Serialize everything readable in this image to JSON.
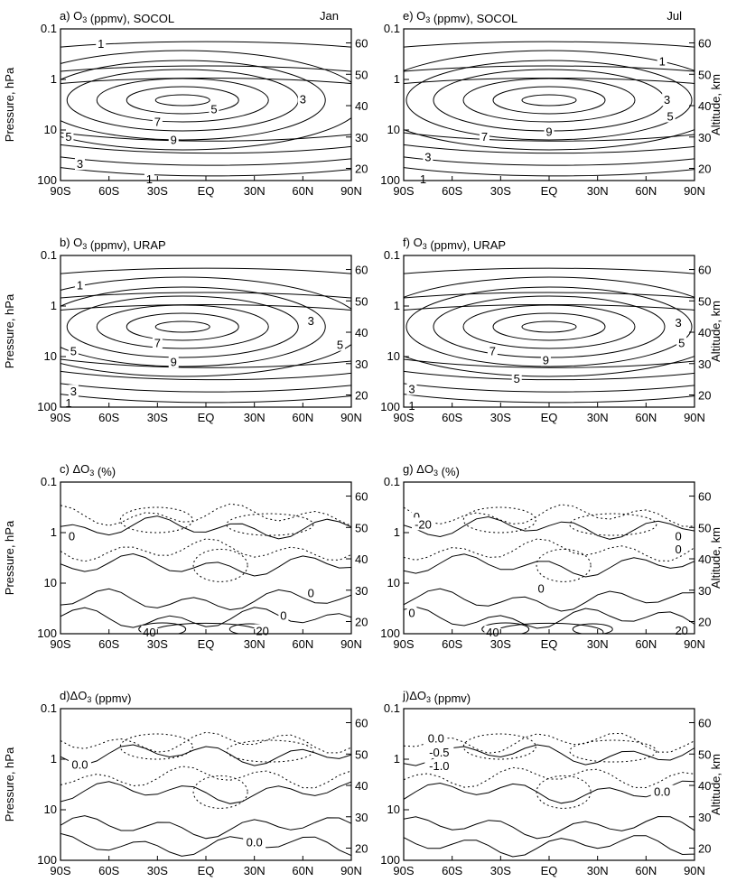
{
  "figure": {
    "y_left_label": "Pressure, hPa",
    "y_right_label": "Altitude, km",
    "x_tick_labels": [
      "90S",
      "60S",
      "30S",
      "EQ",
      "30N",
      "60N",
      "90N"
    ],
    "y_left_tick_labels": [
      "0.1",
      "1",
      "10",
      "100"
    ],
    "y_right_tick_labels": [
      "60",
      "50",
      "40",
      "30",
      "20"
    ]
  },
  "chart_data": [
    {
      "type": "contour",
      "panel": "a",
      "title": "a) O3 (ppmv), SOCOL",
      "month": "Jan",
      "x": [
        "90S",
        "60S",
        "30S",
        "EQ",
        "30N",
        "60N",
        "90N"
      ],
      "xlim": [
        -90,
        90
      ],
      "ylim_pressure_hPa": [
        100,
        0.1
      ],
      "altitude_km_ticks": [
        60,
        50,
        40,
        30,
        20
      ],
      "contour_labels": [
        {
          "text": "1",
          "lat": -65,
          "p": 0.2
        },
        {
          "text": "3",
          "lat": 60,
          "p": 2.5
        },
        {
          "text": "5",
          "lat": 5,
          "p": 4
        },
        {
          "text": "7",
          "lat": -30,
          "p": 7
        },
        {
          "text": "9",
          "lat": -20,
          "p": 16
        },
        {
          "text": "5",
          "lat": -85,
          "p": 14
        },
        {
          "text": "3",
          "lat": -78,
          "p": 48
        },
        {
          "text": "1",
          "lat": -35,
          "p": 95
        }
      ]
    },
    {
      "type": "contour",
      "panel": "e",
      "title": "e) O3 (ppmv), SOCOL",
      "month": "Jul",
      "x": [
        "90S",
        "60S",
        "30S",
        "EQ",
        "30N",
        "60N",
        "90N"
      ],
      "xlim": [
        -90,
        90
      ],
      "ylim_pressure_hPa": [
        100,
        0.1
      ],
      "altitude_km_ticks": [
        60,
        50,
        40,
        30,
        20
      ],
      "contour_labels": [
        {
          "text": "1",
          "lat": 70,
          "p": 0.45
        },
        {
          "text": "3",
          "lat": 73,
          "p": 2.6
        },
        {
          "text": "5",
          "lat": 75,
          "p": 5.5
        },
        {
          "text": "7",
          "lat": -40,
          "p": 14
        },
        {
          "text": "9",
          "lat": 0,
          "p": 11
        },
        {
          "text": "3",
          "lat": -75,
          "p": 35
        },
        {
          "text": "1",
          "lat": -78,
          "p": 95
        }
      ]
    },
    {
      "type": "contour",
      "panel": "b",
      "title": "b) O3 (ppmv), URAP",
      "x": [
        "90S",
        "60S",
        "30S",
        "EQ",
        "30N",
        "60N",
        "90N"
      ],
      "xlim": [
        -90,
        90
      ],
      "ylim_pressure_hPa": [
        100,
        0.1
      ],
      "altitude_km_ticks": [
        60,
        50,
        40,
        30,
        20
      ],
      "contour_labels": [
        {
          "text": "1",
          "lat": -78,
          "p": 0.4
        },
        {
          "text": "3",
          "lat": 65,
          "p": 2
        },
        {
          "text": "7",
          "lat": -30,
          "p": 5.5
        },
        {
          "text": "5",
          "lat": -82,
          "p": 8
        },
        {
          "text": "5",
          "lat": 83,
          "p": 6
        },
        {
          "text": "9",
          "lat": -20,
          "p": 13
        },
        {
          "text": "3",
          "lat": -82,
          "p": 50
        },
        {
          "text": "1",
          "lat": -85,
          "p": 85
        }
      ]
    },
    {
      "type": "contour",
      "panel": "f",
      "title": "f) O3 (ppmv), URAP",
      "x": [
        "90S",
        "60S",
        "30S",
        "EQ",
        "30N",
        "60N",
        "90N"
      ],
      "xlim": [
        -90,
        90
      ],
      "ylim_pressure_hPa": [
        100,
        0.1
      ],
      "altitude_km_ticks": [
        60,
        50,
        40,
        30,
        20
      ],
      "contour_labels": [
        {
          "text": "3",
          "lat": 80,
          "p": 2.2
        },
        {
          "text": "5",
          "lat": 82,
          "p": 5.5
        },
        {
          "text": "7",
          "lat": -35,
          "p": 8
        },
        {
          "text": "9",
          "lat": -2,
          "p": 12
        },
        {
          "text": "5",
          "lat": -20,
          "p": 28
        },
        {
          "text": "3",
          "lat": -85,
          "p": 45
        },
        {
          "text": "1",
          "lat": -85,
          "p": 95
        }
      ]
    },
    {
      "type": "contour",
      "panel": "c",
      "title": "c) ΔO3 (%)",
      "x": [
        "90S",
        "60S",
        "30S",
        "EQ",
        "30N",
        "60N",
        "90N"
      ],
      "xlim": [
        -90,
        90
      ],
      "ylim_pressure_hPa": [
        100,
        0.1
      ],
      "altitude_km_ticks": [
        60,
        50,
        40,
        30,
        20
      ],
      "contour_labels": [
        {
          "text": "0",
          "lat": -83,
          "p": 1.2
        },
        {
          "text": "0",
          "lat": 65,
          "p": 16
        },
        {
          "text": "0",
          "lat": 48,
          "p": 45
        },
        {
          "text": "20",
          "lat": 35,
          "p": 90
        },
        {
          "text": "40",
          "lat": -35,
          "p": 95
        }
      ]
    },
    {
      "type": "contour",
      "panel": "g",
      "title": "g) ΔO3 (%)",
      "x": [
        "90S",
        "60S",
        "30S",
        "EQ",
        "30N",
        "60N",
        "90N"
      ],
      "xlim": [
        -90,
        90
      ],
      "ylim_pressure_hPa": [
        100,
        0.1
      ],
      "altitude_km_ticks": [
        60,
        50,
        40,
        30,
        20
      ],
      "contour_labels": [
        {
          "text": "0",
          "lat": -82,
          "p": 0.5
        },
        {
          "text": "-20",
          "lat": -78,
          "p": 0.7
        },
        {
          "text": "0",
          "lat": 80,
          "p": 1.2
        },
        {
          "text": "0",
          "lat": 80,
          "p": 2.2
        },
        {
          "text": "0",
          "lat": -5,
          "p": 13
        },
        {
          "text": "0",
          "lat": -85,
          "p": 40
        },
        {
          "text": "40",
          "lat": -35,
          "p": 95
        },
        {
          "text": "20",
          "lat": 82,
          "p": 88
        }
      ]
    },
    {
      "type": "contour",
      "panel": "d",
      "title": "d)ΔO3 (ppmv)",
      "x": [
        "90S",
        "60S",
        "30S",
        "EQ",
        "30N",
        "60N",
        "90N"
      ],
      "xlim": [
        -90,
        90
      ],
      "ylim_pressure_hPa": [
        100,
        0.1
      ],
      "altitude_km_ticks": [
        60,
        50,
        40,
        30,
        20
      ],
      "contour_labels": [
        {
          "text": "0.0",
          "lat": -78,
          "p": 1.3
        },
        {
          "text": "0.0",
          "lat": 30,
          "p": 45
        }
      ]
    },
    {
      "type": "contour",
      "panel": "j",
      "title": "j)ΔO3 (ppmv)",
      "x": [
        "90S",
        "60S",
        "30S",
        "EQ",
        "30N",
        "60N",
        "90N"
      ],
      "xlim": [
        -90,
        90
      ],
      "ylim_pressure_hPa": [
        100,
        0.1
      ],
      "altitude_km_ticks": [
        60,
        50,
        40,
        30,
        20
      ],
      "contour_labels": [
        {
          "text": "0.0",
          "lat": -70,
          "p": 0.4
        },
        {
          "text": "-0.5",
          "lat": -68,
          "p": 0.75
        },
        {
          "text": "-1.0",
          "lat": -68,
          "p": 1.4
        },
        {
          "text": "0.0",
          "lat": 70,
          "p": 4.5
        }
      ]
    }
  ]
}
